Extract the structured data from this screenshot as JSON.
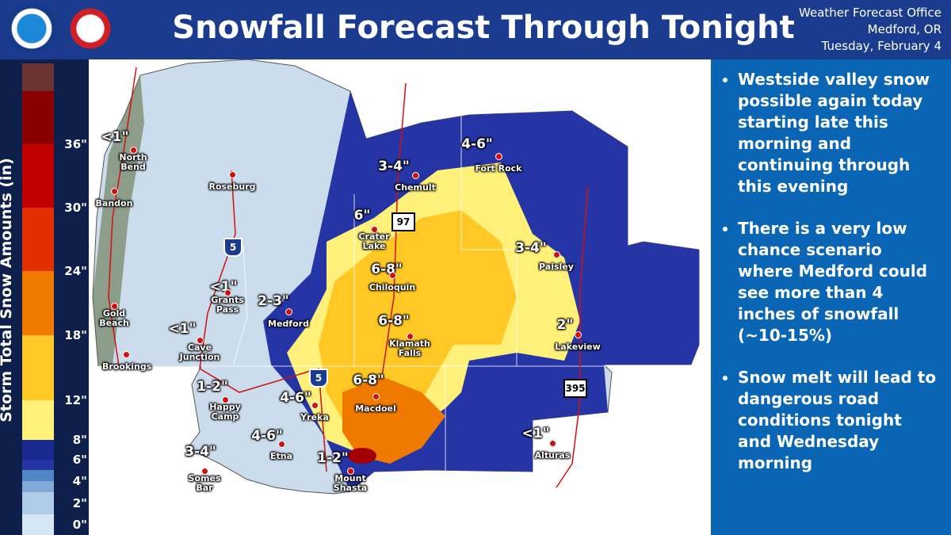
{
  "header": {
    "title": "Snowfall Forecast Through Tonight",
    "office": [
      "Weather Forecast Office",
      "Medford, OR",
      "Tuesday, February 4"
    ]
  },
  "legend": {
    "title": "Storm Total Snow Amounts (in)",
    "ticks": [
      "0\"",
      "2\"",
      "4\"",
      "6\"",
      "8\"",
      "12\"",
      "18\"",
      "24\"",
      "30\"",
      "36\""
    ],
    "colors": [
      "#d6e6f4",
      "#aecbe8",
      "#7fa9d6",
      "#4f86c4",
      "#2535a5",
      "#1a2a90",
      "#fff07a",
      "#ffc825",
      "#f07a00",
      "#e03000",
      "#c00000",
      "#8a0000",
      "#6a3434"
    ]
  },
  "map": {
    "amounts": [
      "<1\"",
      "<1\"",
      "2-3\"",
      "<1\"",
      "3-4\"",
      "6\"",
      "6-8\"",
      "6-8\"",
      "4-6\"",
      "3-4\"",
      "2\"",
      "1-2\"",
      "4-6\"",
      "6-8\"",
      "4-6\"",
      "3-4\"",
      "1-2\"",
      "<1\""
    ],
    "cities": [
      "North Bend",
      "Bandon",
      "Roseburg",
      "Gold Beach",
      "Brookings",
      "Grants Pass",
      "Cave Junction",
      "Medford",
      "Crater Lake",
      "Chemult",
      "Chiloquin",
      "Klamath Falls",
      "Fort Rock",
      "Paisley",
      "Lakeview",
      "Happy Camp",
      "Yreka",
      "Macdoel",
      "Etna",
      "Somes Bar",
      "Mount Shasta",
      "Alturas"
    ],
    "shields": [
      "5",
      "97",
      "395",
      "5"
    ]
  },
  "bullets": [
    "Westside valley snow possible again today starting late this morning and continuing through this evening",
    "There is a very low chance scenario where Medford could see more than 4 inches of snowfall (~10-15%)",
    "Snow melt will lead to dangerous road conditions tonight and Wednesday morning"
  ]
}
